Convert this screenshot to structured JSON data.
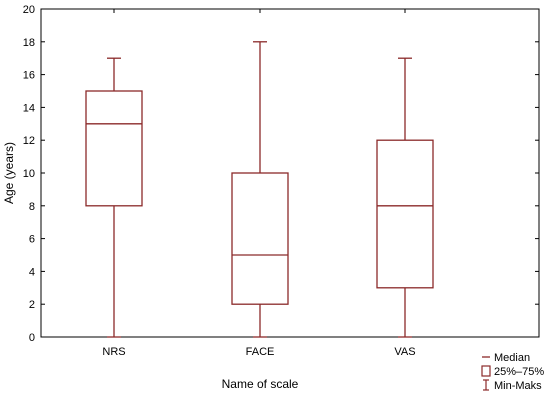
{
  "chart_data": {
    "type": "boxplot",
    "xlabel": "Name of scale",
    "ylabel": "Age (years)",
    "ylim": [
      0,
      20
    ],
    "yticks": [
      0,
      2,
      4,
      6,
      8,
      10,
      12,
      14,
      16,
      18,
      20
    ],
    "categories": [
      "NRS",
      "FACE",
      "VAS"
    ],
    "boxes": [
      {
        "category": "NRS",
        "min": 0,
        "q1": 8,
        "median": 13,
        "q3": 15,
        "max": 17
      },
      {
        "category": "FACE",
        "min": 0,
        "q1": 2,
        "median": 5,
        "q3": 10,
        "max": 18
      },
      {
        "category": "VAS",
        "min": 0,
        "q1": 3,
        "median": 8,
        "q3": 12,
        "max": 17
      }
    ],
    "legend": {
      "position": "bottom-right",
      "items": [
        {
          "label": "Median",
          "symbol": "line"
        },
        {
          "label": "25%–75%",
          "symbol": "box"
        },
        {
          "label": "Min-Maks",
          "symbol": "whisker"
        }
      ]
    },
    "grid": false,
    "color": "#8b2a2a"
  }
}
